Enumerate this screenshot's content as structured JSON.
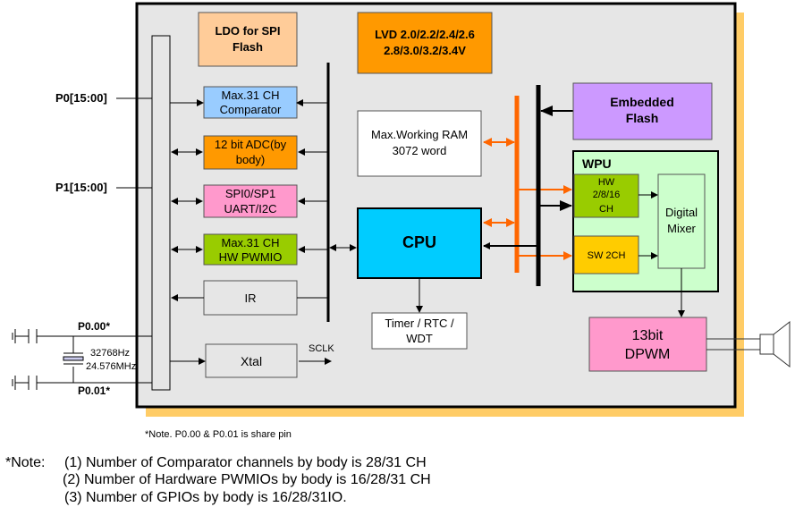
{
  "pins": {
    "p0": "P0[15:00]",
    "p1": "P1[15:00]",
    "p000": "P0.00*",
    "p001": "P0.01*",
    "crystal_freq1": "32768Hz",
    "crystal_freq2": "24.576MHz"
  },
  "blocks": {
    "ldo": [
      "LDO for SPI",
      "Flash"
    ],
    "lvd": [
      "LVD 2.0/2.2/2.4/2.6",
      "2.8/3.0/3.2/3.4V"
    ],
    "comparator": [
      "Max.31 CH",
      "Comparator"
    ],
    "adc": [
      "12 bit ADC(by",
      "body)"
    ],
    "spi": [
      "SPI0/SP1",
      "UART/I2C"
    ],
    "pwmio": [
      "Max.31 CH",
      "HW PWMIO"
    ],
    "ir": "IR",
    "xtal": "Xtal",
    "sclk": "SCLK",
    "ram": [
      "Max.Working RAM",
      "3072 word"
    ],
    "cpu": "CPU",
    "timer": [
      "Timer / RTC /",
      "WDT"
    ],
    "flash": [
      "Embedded",
      "Flash"
    ],
    "wpu": "WPU",
    "hw": [
      "HW",
      "2/8/16",
      "CH"
    ],
    "sw": "SW 2CH",
    "mixer": [
      "Digital",
      "Mixer"
    ],
    "dpwm": [
      "13bit",
      "DPWM"
    ]
  },
  "share_note": "*Note. P0.00 & P0.01 is share pin",
  "notes": {
    "label": "*Note:",
    "items": [
      "(1) Number of Comparator channels by body is 28/31 CH",
      "(2) Number of Hardware PWMIOs by body is 16/28/31 CH",
      "(3) Number of GPIOs by body is 16/28/31IO."
    ]
  },
  "colors": {
    "chip_bg": "#e6e6e6",
    "shadow": "#ffcc66",
    "ldo": "#ffcc99",
    "lvd": "#ff9900",
    "comparator": "#99ccff",
    "adc": "#ff9900",
    "spi": "#ff99cc",
    "pwmio": "#99cc00",
    "cpu": "#00ccff",
    "flash": "#cc99ff",
    "wpu": "#ccffcc",
    "hw": "#99cc00",
    "sw": "#ffcc00",
    "dpwm": "#ff99cc",
    "orange_bus": "#ff6600"
  }
}
